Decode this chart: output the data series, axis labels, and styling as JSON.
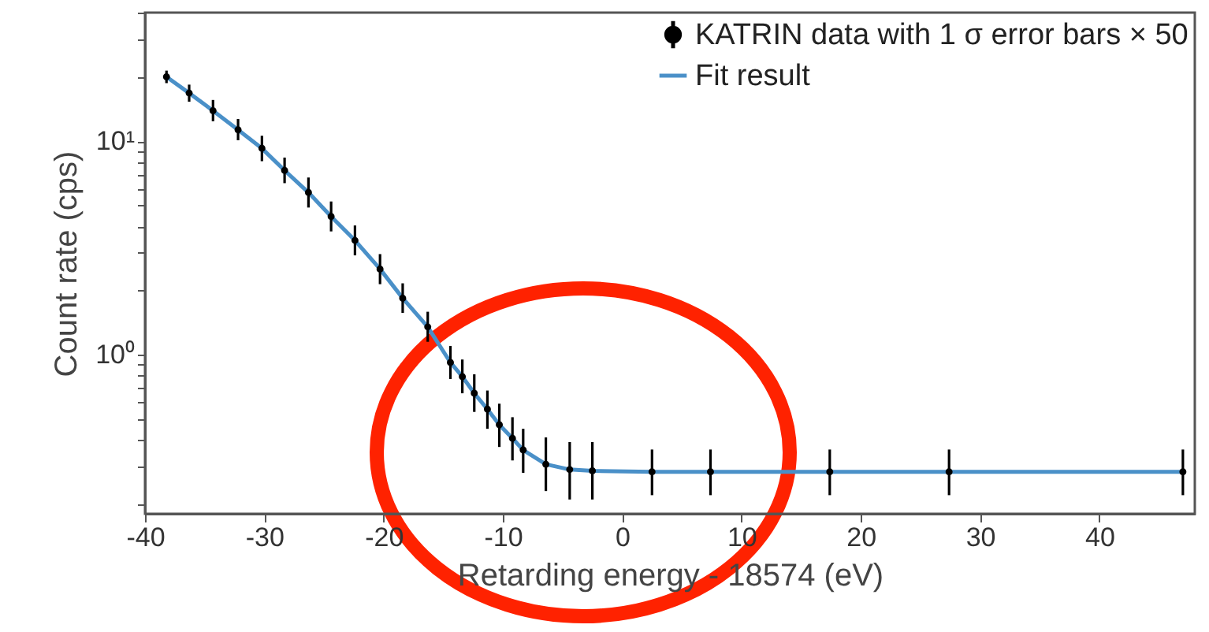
{
  "chart_data": {
    "type": "scatter",
    "xlabel": "Retarding energy - 18574 (eV)",
    "ylabel": "Count rate (cps)",
    "log": "y",
    "grid": false,
    "legend": "top right",
    "xlim": [
      -40,
      48
    ],
    "ylim": [
      0.18,
      40
    ],
    "xticks": [
      -40,
      -30,
      -20,
      -10,
      0,
      10,
      20,
      30,
      40
    ],
    "yticks": [
      {
        "value": 0.2,
        "label": null
      },
      {
        "value": 0.3,
        "label": null
      },
      {
        "value": 0.4,
        "label": null
      },
      {
        "value": 0.5,
        "label": null
      },
      {
        "value": 0.6,
        "label": null
      },
      {
        "value": 0.7,
        "label": null
      },
      {
        "value": 0.8,
        "label": null
      },
      {
        "value": 0.9,
        "label": null
      },
      {
        "value": 1,
        "label": "10⁰"
      },
      {
        "value": 2,
        "label": null
      },
      {
        "value": 3,
        "label": null
      },
      {
        "value": 4,
        "label": null
      },
      {
        "value": 5,
        "label": null
      },
      {
        "value": 6,
        "label": null
      },
      {
        "value": 7,
        "label": null
      },
      {
        "value": 8,
        "label": null
      },
      {
        "value": 9,
        "label": null
      },
      {
        "value": 10,
        "label": "10¹"
      },
      {
        "value": 20,
        "label": null
      },
      {
        "value": 30,
        "label": null
      },
      {
        "value": 40,
        "label": null
      }
    ],
    "series": [
      {
        "name": "KATRIN data with 1 σ error bars × 50",
        "marker": "circle",
        "color": "#000000",
        "x": [
          -38.2,
          -36.3,
          -34.3,
          -32.2,
          -30.2,
          -28.3,
          -26.3,
          -24.4,
          -22.4,
          -20.3,
          -18.4,
          -16.3,
          -14.4,
          -13.4,
          -12.4,
          -11.3,
          -10.3,
          -9.2,
          -8.3,
          -6.4,
          -4.4,
          -2.5,
          2.5,
          7.4,
          17.4,
          27.4,
          47
        ],
        "values": [
          20,
          16.8,
          13.9,
          11.3,
          9.25,
          7.3,
          5.75,
          4.44,
          3.43,
          2.52,
          1.84,
          1.35,
          0.92,
          0.79,
          0.66,
          0.556,
          0.47,
          0.406,
          0.358,
          0.307,
          0.29,
          0.286,
          0.283,
          0.283,
          0.283,
          0.283,
          0.283
        ],
        "errors": [
          [
            18.7,
            21.4
          ],
          [
            15.3,
            18.4
          ],
          [
            12.4,
            15.6
          ],
          [
            10.1,
            12.7
          ],
          [
            8.06,
            10.6
          ],
          [
            6.36,
            8.38
          ],
          [
            4.89,
            6.76
          ],
          [
            3.78,
            5.22
          ],
          [
            2.92,
            4.03
          ],
          [
            2.14,
            2.96
          ],
          [
            1.57,
            2.16
          ],
          [
            1.15,
            1.59
          ],
          [
            0.77,
            1.1
          ],
          [
            0.66,
            0.95
          ],
          [
            0.54,
            0.81
          ],
          [
            0.45,
            0.68
          ],
          [
            0.37,
            0.59
          ],
          [
            0.32,
            0.51
          ],
          [
            0.28,
            0.45
          ],
          [
            0.23,
            0.41
          ],
          [
            0.21,
            0.39
          ],
          [
            0.21,
            0.39
          ],
          [
            0.22,
            0.36
          ],
          [
            0.22,
            0.36
          ],
          [
            0.22,
            0.36
          ],
          [
            0.22,
            0.36
          ],
          [
            0.22,
            0.36
          ]
        ]
      },
      {
        "name": "Fit result",
        "type": "line",
        "color": "#4a90c8",
        "x": [
          -38.2,
          -36.3,
          -34.3,
          -32.2,
          -30.2,
          -28.3,
          -26.3,
          -24.4,
          -22.4,
          -20.3,
          -18.4,
          -16.3,
          -14.4,
          -13.4,
          -12.4,
          -11.3,
          -10.3,
          -9.2,
          -8.3,
          -6.4,
          -4.4,
          -2.5,
          2.5,
          7.4,
          17.4,
          27.4,
          47
        ],
        "values": [
          20,
          16.8,
          13.9,
          11.3,
          9.25,
          7.3,
          5.75,
          4.44,
          3.43,
          2.52,
          1.84,
          1.35,
          0.92,
          0.79,
          0.66,
          0.556,
          0.47,
          0.406,
          0.358,
          0.307,
          0.29,
          0.286,
          0.283,
          0.283,
          0.283,
          0.283,
          0.283
        ]
      }
    ]
  }
}
